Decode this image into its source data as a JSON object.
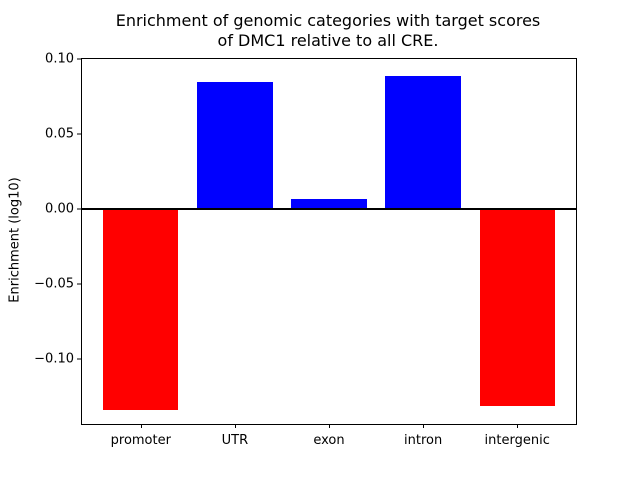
{
  "chart_data": {
    "type": "bar",
    "title": "Enrichment of genomic categories with target scores\nof DMC1 relative to all CRE.",
    "ylabel": "Enrichment (log10)",
    "xlabel": "",
    "categories": [
      "promoter",
      "UTR",
      "exon",
      "intron",
      "intergenic"
    ],
    "values": [
      -0.134,
      0.085,
      0.007,
      0.089,
      -0.131
    ],
    "bar_colors": [
      "#ff0000",
      "#0000ff",
      "#0000ff",
      "#0000ff",
      "#ff0000"
    ],
    "positive_color": "#0000ff",
    "negative_color": "#ff0000",
    "ylim": [
      -0.1433,
      0.1
    ],
    "yticks": [
      0.1,
      0.05,
      0.0,
      -0.05,
      -0.1
    ],
    "ytick_labels": [
      "0.10",
      "0.05",
      "0.00",
      "−0.05",
      "−0.10"
    ],
    "zero_line": true,
    "grid": false,
    "legend": null,
    "bar_width": 0.8,
    "x_pad": 0.625
  }
}
